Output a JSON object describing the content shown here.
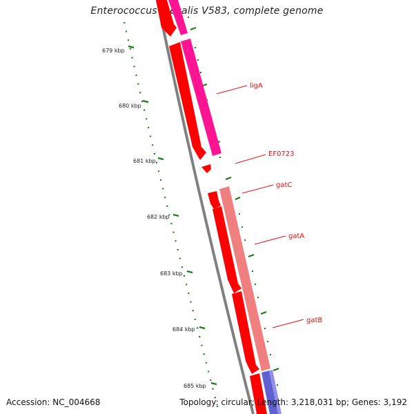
{
  "title": "Enterococcus faecalis V583, complete genome",
  "footer": {
    "accession": "Accession: NC_004668",
    "summary": "Topology: circular; Length: 3,218,031 bp; Genes: 3,192"
  },
  "tick_labels": [
    "679 kbp",
    "680 kbp",
    "681 kbp",
    "682 kbp",
    "683 kbp",
    "684 kbp",
    "685 kbp"
  ],
  "gene_labels": [
    "ligA",
    "EF0723",
    "gatC",
    "gatA",
    "gatB"
  ],
  "colors": {
    "cds": "#ff0000",
    "cds_light": "#f08080",
    "cds_magenta": "#ff1493",
    "backbone": "#808080",
    "tick": "#1a7a1a",
    "label": "#e01010",
    "blue_feature": "#6060d0"
  }
}
